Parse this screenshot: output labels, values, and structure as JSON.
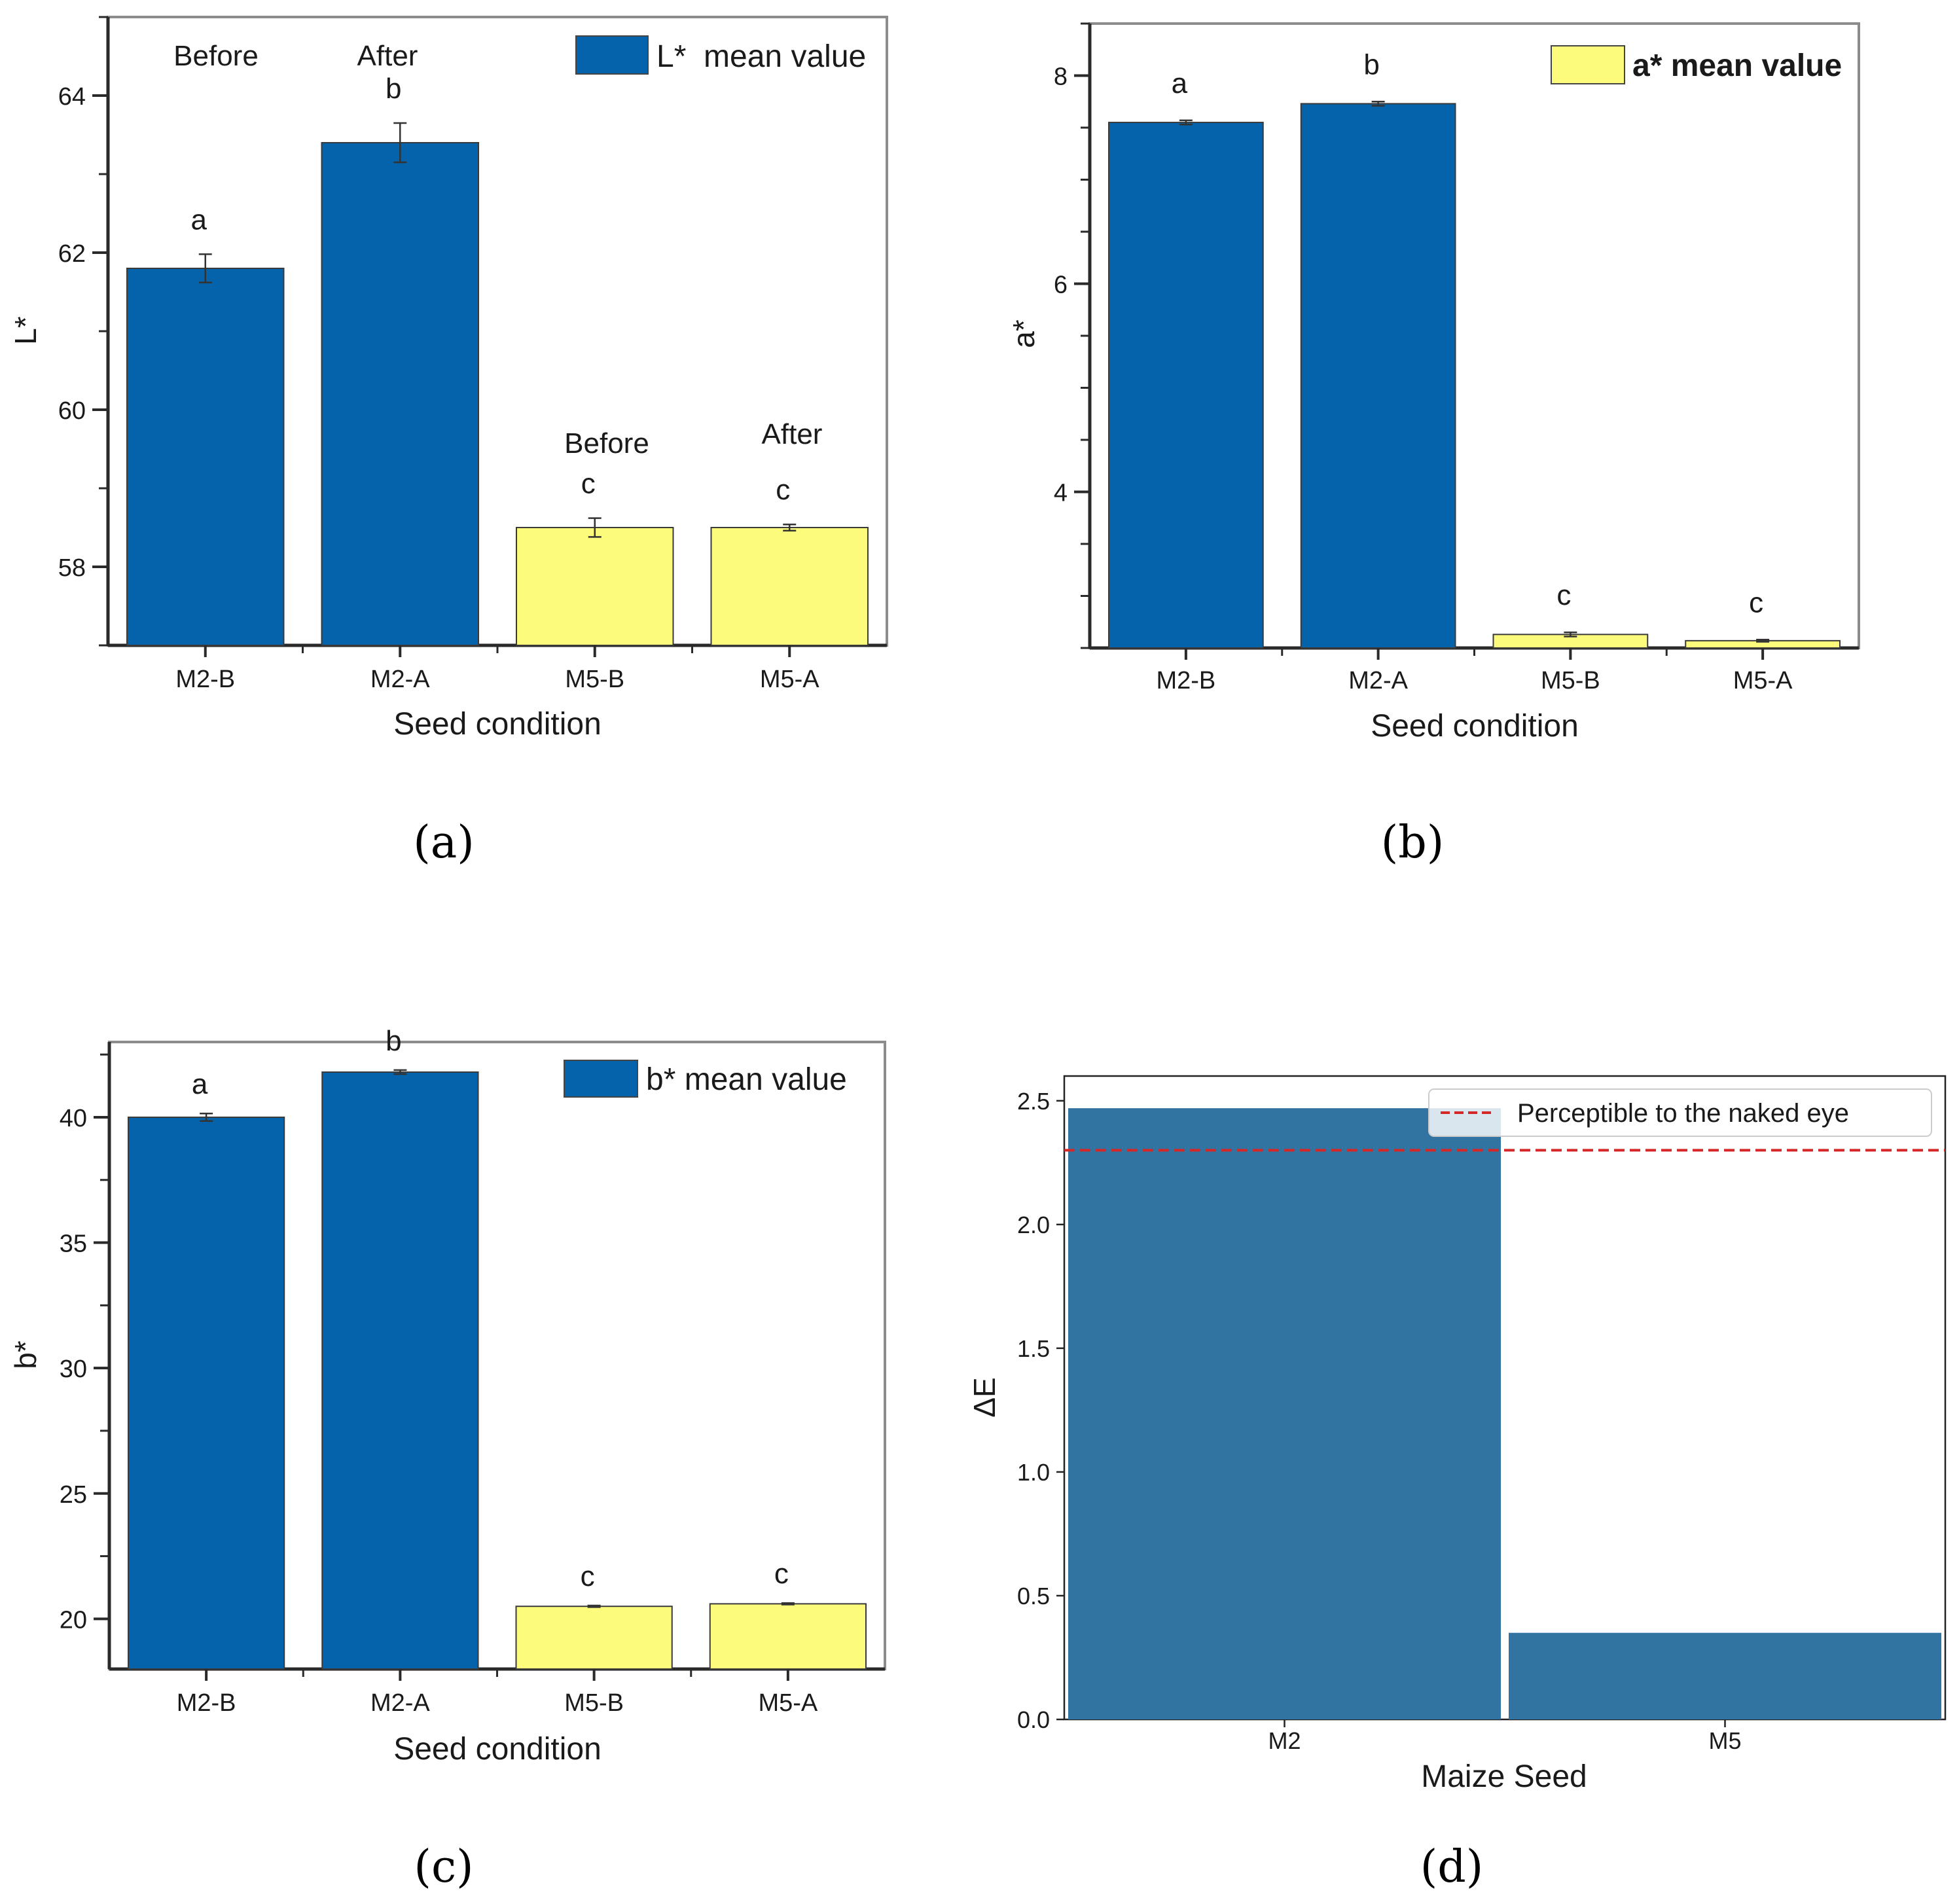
{
  "chart_data": [
    {
      "panel": "(a)",
      "type": "bar",
      "categories": [
        "M2-B",
        "M2-A",
        "M5-B",
        "M5-A"
      ],
      "values": [
        61.8,
        63.4,
        58.5,
        58.5
      ],
      "errors": [
        0.18,
        0.25,
        0.12,
        0.04
      ],
      "bar_colors": [
        "#0563ab",
        "#0563ab",
        "#fdfb7c",
        "#fdfb7c"
      ],
      "letters": [
        "a",
        "b",
        "c",
        "c"
      ],
      "annotations": [
        "Before",
        "After",
        "Before",
        "After"
      ],
      "xlabel": "Seed condition",
      "ylabel": "L*",
      "ylim": [
        57,
        65
      ],
      "yticks": [
        58,
        60,
        62,
        64
      ],
      "legend": {
        "label": "L*  mean value",
        "color": "#0563ab"
      }
    },
    {
      "panel": "(b)",
      "type": "bar",
      "categories": [
        "M2-B",
        "M2-A",
        "M5-B",
        "M5-A"
      ],
      "values": [
        7.55,
        7.73,
        2.63,
        2.57
      ],
      "errors": [
        0.02,
        0.02,
        0.02,
        0.01
      ],
      "bar_colors": [
        "#0563ab",
        "#0563ab",
        "#fdfb7c",
        "#fdfb7c"
      ],
      "letters": [
        "a",
        "b",
        "c",
        "c"
      ],
      "xlabel": "Seed condition",
      "ylabel": "a*",
      "ylim": [
        2.5,
        8.5
      ],
      "yticks": [
        4,
        6,
        8
      ],
      "legend": {
        "label": "a* mean value",
        "color": "#fdfb7c"
      }
    },
    {
      "panel": "(c)",
      "type": "bar",
      "categories": [
        "M2-B",
        "M2-A",
        "M5-B",
        "M5-A"
      ],
      "values": [
        40.0,
        41.8,
        20.5,
        20.6
      ],
      "errors": [
        0.15,
        0.08,
        0.03,
        0.03
      ],
      "bar_colors": [
        "#0563ab",
        "#0563ab",
        "#fdfb7c",
        "#fdfb7c"
      ],
      "letters": [
        "a",
        "b",
        "c",
        "c"
      ],
      "xlabel": "Seed condition",
      "ylabel": "b*",
      "ylim": [
        18,
        43
      ],
      "yticks": [
        20,
        25,
        30,
        35,
        40
      ],
      "legend": {
        "label": "b* mean value",
        "color": "#0563ab"
      }
    },
    {
      "panel": "(d)",
      "type": "bar",
      "categories": [
        "M2",
        "M5"
      ],
      "values": [
        2.47,
        0.35
      ],
      "bar_colors": [
        "#3274a1",
        "#3274a1"
      ],
      "threshold": {
        "value": 2.3,
        "label": "Perceptible to the naked eye",
        "color": "#d62728"
      },
      "xlabel": "Maize Seed",
      "ylabel": "ΔE",
      "ylim": [
        0,
        2.6
      ],
      "yticks": [
        "0.0",
        "0.5",
        "1.0",
        "1.5",
        "2.0",
        "2.5"
      ]
    }
  ],
  "subfigure_labels": [
    "(a)",
    "(b)",
    "(c)",
    "(d)"
  ]
}
